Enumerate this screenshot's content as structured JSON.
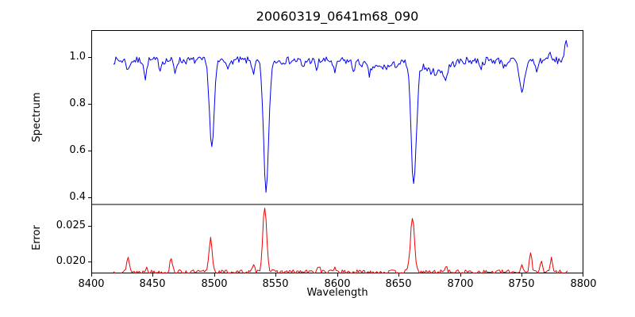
{
  "chart_data": {
    "type": "line",
    "title": "20060319_0641m68_090",
    "xlabel": "Wavelength",
    "xlim": [
      8400,
      8800
    ],
    "xticks": [
      8400,
      8450,
      8500,
      8550,
      8600,
      8650,
      8700,
      8750,
      8800
    ],
    "xtick_labels": [
      "8400",
      "8450",
      "8500",
      "8550",
      "8600",
      "8650",
      "8700",
      "8750",
      "8800"
    ],
    "grid": false,
    "legend": "none",
    "panels": [
      {
        "name": "spectrum",
        "ylabel": "Spectrum",
        "ylim": [
          0.37,
          1.115
        ],
        "yticks": [
          0.4,
          0.6,
          0.8,
          1.0
        ],
        "ytick_labels": [
          "0.4",
          "0.6",
          "0.8",
          "1.0"
        ],
        "color": "#0000ee",
        "series": {
          "x_start": 8418,
          "x_end": 8787,
          "step": 1,
          "base": 0.985,
          "noise": 0.016,
          "seed": 7,
          "features": [
            {
              "c": 8430,
              "d": 0.045,
              "w": 1.0
            },
            {
              "c": 8444,
              "d": 0.085,
              "w": 0.9
            },
            {
              "c": 8456,
              "d": 0.035,
              "w": 0.9
            },
            {
              "c": 8468,
              "d": 0.05,
              "w": 1.0
            },
            {
              "c": 8498.0,
              "d": 0.375,
              "w": 1.9
            },
            {
              "c": 8512,
              "d": 0.035,
              "w": 1.0
            },
            {
              "c": 8532,
              "d": 0.05,
              "w": 1.2
            },
            {
              "c": 8542.1,
              "d": 0.555,
              "w": 2.1
            },
            {
              "c": 8572,
              "d": 0.035,
              "w": 1.0
            },
            {
              "c": 8583,
              "d": 0.04,
              "w": 1.0
            },
            {
              "c": 8598,
              "d": 0.055,
              "w": 1.2
            },
            {
              "c": 8613,
              "d": 0.035,
              "w": 1.0
            },
            {
              "c": 8626,
              "d": 0.04,
              "w": 1.1
            },
            {
              "c": 8635,
              "d": 0.03,
              "w": 12
            },
            {
              "c": 8662.1,
              "d": 0.53,
              "w": 2.1
            },
            {
              "c": 8680,
              "d": 0.05,
              "w": 9
            },
            {
              "c": 8688,
              "d": 0.05,
              "w": 1.2
            },
            {
              "c": 8717,
              "d": 0.03,
              "w": 1.0
            },
            {
              "c": 8736,
              "d": 0.03,
              "w": 1.0
            },
            {
              "c": 8750,
              "d": 0.13,
              "w": 2.2
            },
            {
              "c": 8762,
              "d": 0.05,
              "w": 1.0
            },
            {
              "c": 8772,
              "d": -0.03,
              "w": 1.2
            },
            {
              "c": 8786,
              "d": -0.07,
              "w": 1.5
            }
          ]
        }
      },
      {
        "name": "error",
        "ylabel": "Error",
        "ylim": [
          0.0183,
          0.028
        ],
        "yticks": [
          0.02,
          0.025
        ],
        "ytick_labels": [
          "0.020",
          "0.025"
        ],
        "color": "#ee0000",
        "series": {
          "x_start": 8418,
          "x_end": 8787,
          "step": 1,
          "base": 0.0185,
          "noise": 0.0003,
          "seed": 13,
          "features": [
            {
              "c": 8430,
              "d": -0.0022,
              "w": 1.0
            },
            {
              "c": 8445,
              "d": -0.0008,
              "w": 0.9
            },
            {
              "c": 8465,
              "d": -0.0021,
              "w": 1.0
            },
            {
              "c": 8497,
              "d": -0.0048,
              "w": 1.3
            },
            {
              "c": 8532,
              "d": -0.0008,
              "w": 1.0
            },
            {
              "c": 8541,
              "d": -0.0092,
              "w": 1.6
            },
            {
              "c": 8585,
              "d": -0.0009,
              "w": 1.0
            },
            {
              "c": 8598,
              "d": -0.0007,
              "w": 1.0
            },
            {
              "c": 8661,
              "d": -0.0078,
              "w": 1.6
            },
            {
              "c": 8688,
              "d": -0.0009,
              "w": 1.0
            },
            {
              "c": 8750,
              "d": -0.001,
              "w": 1.0
            },
            {
              "c": 8757,
              "d": -0.0028,
              "w": 1.0
            },
            {
              "c": 8766,
              "d": -0.0018,
              "w": 0.9
            },
            {
              "c": 8774,
              "d": -0.002,
              "w": 0.9
            }
          ]
        }
      }
    ]
  }
}
